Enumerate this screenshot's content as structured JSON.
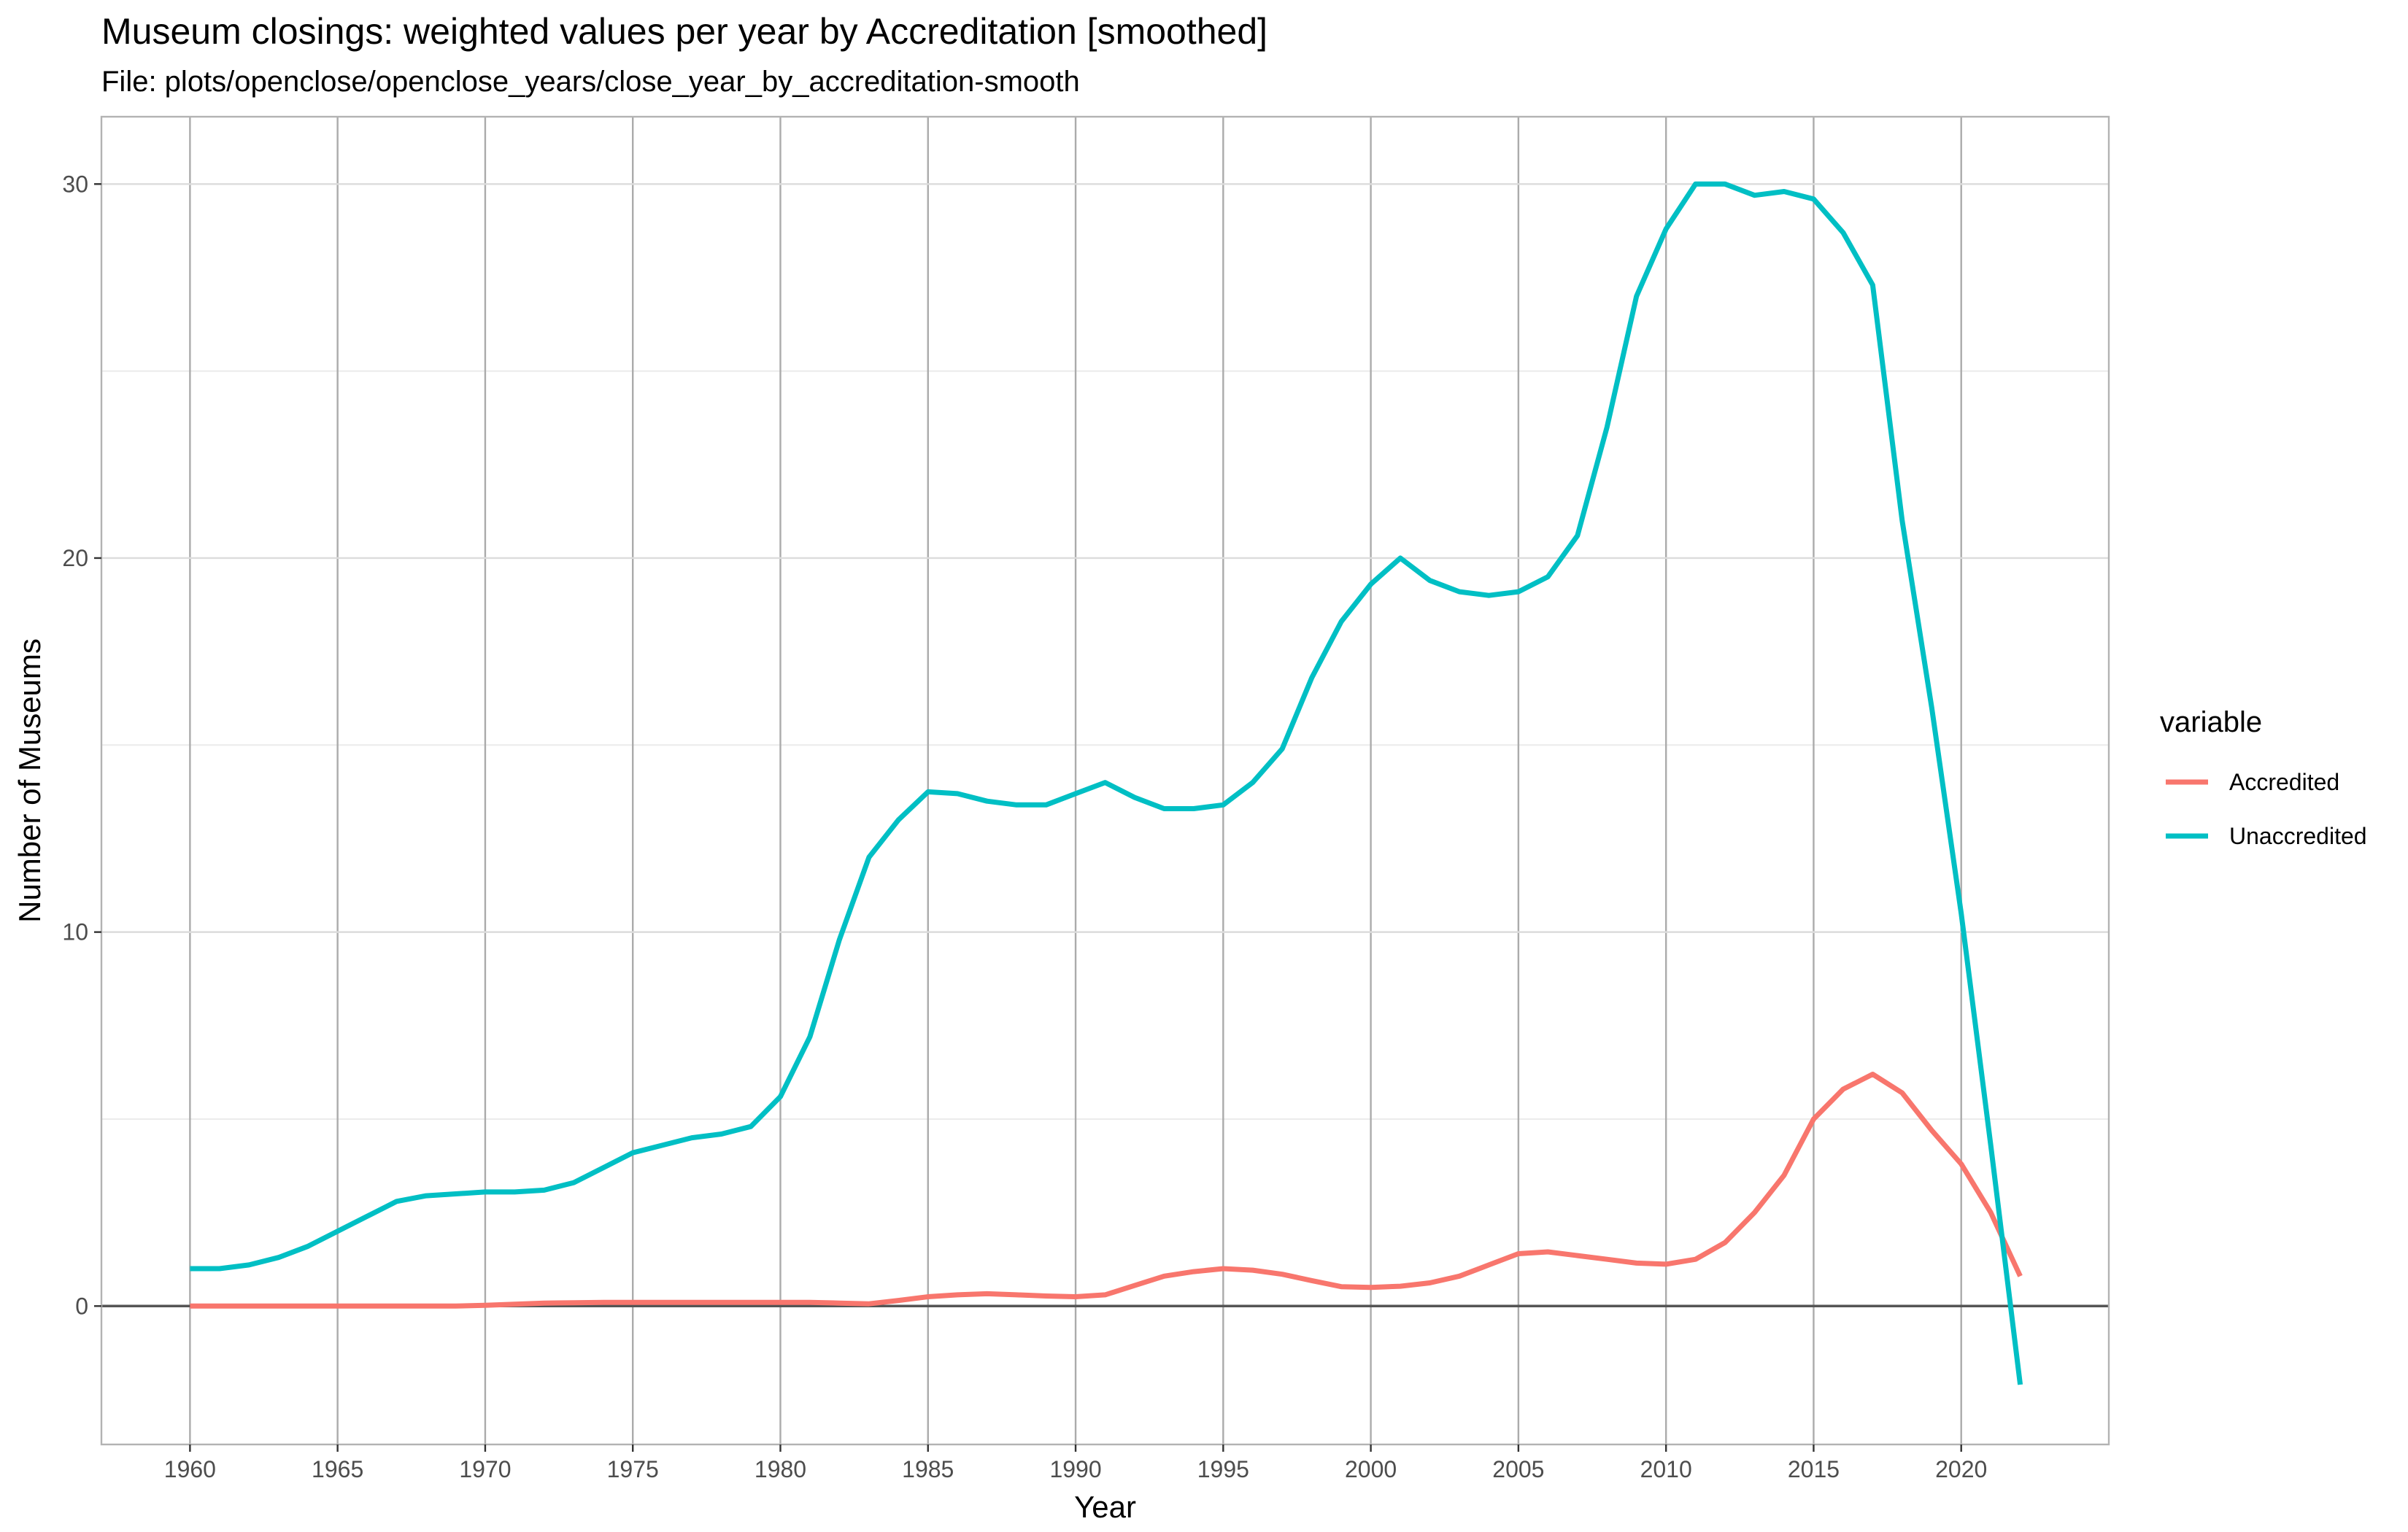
{
  "chart_data": {
    "type": "line",
    "title": "Museum closings: weighted values per year by Accreditation [smoothed]",
    "subtitle": "File: plots/openclose/openclose_years/close_year_by_accreditation-smooth",
    "xlabel": "Year",
    "ylabel": "Number of Museums",
    "xlim": [
      1957,
      2025
    ],
    "ylim": [
      -3.7,
      31.8
    ],
    "x_ticks": [
      1960,
      1965,
      1970,
      1975,
      1980,
      1985,
      1990,
      1995,
      2000,
      2005,
      2010,
      2015,
      2020
    ],
    "y_ticks": [
      0,
      10,
      20,
      30
    ],
    "grid": true,
    "zero_line": true,
    "legend": {
      "title": "variable",
      "position": "right"
    },
    "series": [
      {
        "name": "Accredited",
        "color": "#F8766D",
        "x": [
          1960,
          1961,
          1962,
          1963,
          1964,
          1965,
          1966,
          1967,
          1968,
          1969,
          1970,
          1971,
          1972,
          1973,
          1974,
          1975,
          1976,
          1977,
          1978,
          1979,
          1980,
          1981,
          1982,
          1983,
          1984,
          1985,
          1986,
          1987,
          1988,
          1989,
          1990,
          1991,
          1992,
          1993,
          1994,
          1995,
          1996,
          1997,
          1998,
          1999,
          2000,
          2001,
          2002,
          2003,
          2004,
          2005,
          2006,
          2007,
          2008,
          2009,
          2010,
          2011,
          2012,
          2013,
          2014,
          2015,
          2016,
          2017,
          2018,
          2019,
          2020,
          2021,
          2022
        ],
        "values": [
          0,
          0,
          0,
          0,
          0,
          0,
          0,
          0,
          0,
          0,
          0.02,
          0.05,
          0.08,
          0.09,
          0.1,
          0.1,
          0.1,
          0.1,
          0.1,
          0.1,
          0.1,
          0.1,
          0.08,
          0.06,
          0.15,
          0.25,
          0.3,
          0.33,
          0.3,
          0.27,
          0.25,
          0.3,
          0.55,
          0.8,
          0.92,
          1.0,
          0.96,
          0.85,
          0.68,
          0.52,
          0.5,
          0.53,
          0.62,
          0.8,
          1.1,
          1.4,
          1.45,
          1.35,
          1.25,
          1.15,
          1.12,
          1.25,
          1.7,
          2.5,
          3.5,
          5.0,
          5.8,
          6.2,
          5.7,
          4.7,
          3.8,
          2.5,
          0.8
        ]
      },
      {
        "name": "Unaccredited",
        "color": "#00BFC4",
        "x": [
          1960,
          1961,
          1962,
          1963,
          1964,
          1965,
          1966,
          1967,
          1968,
          1969,
          1970,
          1971,
          1972,
          1973,
          1974,
          1975,
          1976,
          1977,
          1978,
          1979,
          1980,
          1981,
          1982,
          1983,
          1984,
          1985,
          1986,
          1987,
          1988,
          1989,
          1990,
          1991,
          1992,
          1993,
          1994,
          1995,
          1996,
          1997,
          1998,
          1999,
          2000,
          2001,
          2002,
          2003,
          2004,
          2005,
          2006,
          2007,
          2008,
          2009,
          2010,
          2011,
          2012,
          2013,
          2014,
          2015,
          2016,
          2017,
          2018,
          2019,
          2020,
          2021,
          2022
        ],
        "values": [
          1.0,
          1.0,
          1.1,
          1.3,
          1.6,
          2.0,
          2.4,
          2.8,
          2.95,
          3.0,
          3.05,
          3.05,
          3.1,
          3.3,
          3.7,
          4.1,
          4.3,
          4.5,
          4.6,
          4.8,
          5.6,
          7.2,
          9.8,
          12.0,
          13.0,
          13.75,
          13.7,
          13.5,
          13.4,
          13.4,
          13.7,
          14.0,
          13.6,
          13.3,
          13.3,
          13.4,
          14.0,
          14.9,
          16.8,
          18.3,
          19.3,
          20.0,
          19.4,
          19.1,
          19.0,
          19.1,
          19.5,
          20.6,
          23.5,
          27.0,
          28.8,
          30.0,
          30.0,
          29.7,
          29.8,
          29.6,
          28.7,
          27.3,
          21.0,
          16.0,
          10.5,
          4.3,
          -2.1
        ]
      }
    ]
  }
}
